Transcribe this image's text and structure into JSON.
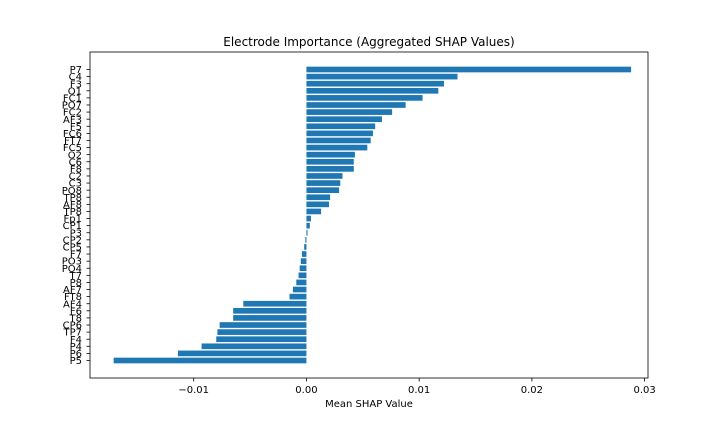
{
  "chart_data": {
    "type": "bar",
    "orientation": "horizontal",
    "title": "Electrode Importance (Aggregated SHAP Values)",
    "xlabel": "Mean SHAP Value",
    "ylabel": "",
    "xlim": [
      -0.0192,
      0.0303
    ],
    "xticks": [
      -0.01,
      0.0,
      0.01,
      0.02,
      0.03
    ],
    "xtick_labels": [
      "−0.01",
      "0.00",
      "0.01",
      "0.02",
      "0.03"
    ],
    "grid": false,
    "bar_color": "#1f77b4",
    "categories": [
      "P7",
      "C4",
      "F3",
      "O1",
      "FC1",
      "PO7",
      "FC2",
      "AF3",
      "F5",
      "FC6",
      "FT7",
      "FC5",
      "O2",
      "C6",
      "F8",
      "C2",
      "C3",
      "PO8",
      "TP8",
      "AF8",
      "TP8",
      "Fp1",
      "CP1",
      "P3",
      "CP2",
      "CP5",
      "F7",
      "PO3",
      "PO4",
      "T7",
      "P8",
      "AF7",
      "FT8",
      "AF4",
      "F6",
      "T8",
      "CP6",
      "TP7",
      "F4",
      "P4",
      "P6",
      "P5"
    ],
    "values": [
      0.0288,
      0.0134,
      0.0122,
      0.0117,
      0.0103,
      0.0088,
      0.0076,
      0.0067,
      0.0061,
      0.0059,
      0.0057,
      0.0054,
      0.0043,
      0.0042,
      0.0042,
      0.0032,
      0.003,
      0.0029,
      0.0021,
      0.002,
      0.0013,
      0.0004,
      0.0003,
      0.0001,
      -0.0001,
      -0.0002,
      -0.0004,
      -0.0005,
      -0.0006,
      -0.0007,
      -0.0009,
      -0.0012,
      -0.0015,
      -0.0056,
      -0.0065,
      -0.0065,
      -0.0077,
      -0.0079,
      -0.008,
      -0.0093,
      -0.0114,
      -0.0171
    ]
  }
}
